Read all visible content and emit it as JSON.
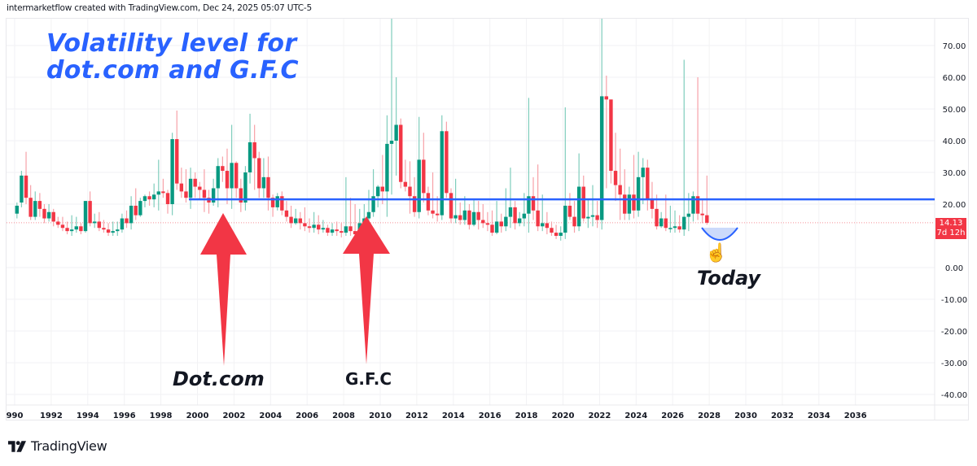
{
  "header": {
    "attribution": "intermarketflow created with TradingView.com, Dec 24, 2025 05:07 UTC-5"
  },
  "annotations": {
    "title_line1": "Volatility level for",
    "title_line2": "dot.com and G.F.C",
    "dotcom_label": "Dot.com",
    "gfc_label": "G.F.C",
    "today_label": "Today",
    "today_icon": "pointing-up-hand-icon"
  },
  "price_badge": {
    "price": "14.13",
    "countdown": "7d 12h"
  },
  "footer": {
    "brand": "TradingView"
  },
  "colors": {
    "up": "#089981",
    "down": "#f23645",
    "up_wick": "#7fcdbc",
    "down_wick": "#f7a1a8",
    "level_line": "#2962ff",
    "title": "#2962ff",
    "arrow": "#f23645",
    "grid": "#f2f2f4"
  },
  "chart_data": {
    "type": "candlestick",
    "title": "Volatility level for dot.com and G.F.C",
    "interval": "quarterly",
    "xlabel": "",
    "ylabel": "",
    "ylim": [
      -45,
      77
    ],
    "grid": true,
    "y_ticks": [
      "70.00",
      "60.00",
      "50.00",
      "40.00",
      "30.00",
      "20.00",
      "0.00",
      "-10.00",
      "-20.00",
      "-30.00",
      "-40.00"
    ],
    "x_ticks": [
      "990",
      "1992",
      "1994",
      "1996",
      "1998",
      "2000",
      "2002",
      "2004",
      "2006",
      "2008",
      "2010",
      "2012",
      "2014",
      "2016",
      "2018",
      "2020",
      "2022",
      "2024",
      "2026",
      "2028",
      "2030",
      "2032",
      "2034",
      "2036"
    ],
    "horizontal_level": 21.5,
    "last_price": 14.13,
    "annotations": [
      "Dot.com arrow at ~2000.7",
      "G.F.C arrow at ~2008.0",
      "Today marker at 2025.9"
    ],
    "start_year": 1990.0,
    "candles": [
      [
        17.0,
        19.5,
        15.5,
        20.5
      ],
      [
        20.5,
        29.0,
        19.0,
        30.5
      ],
      [
        29.0,
        22.0,
        20.0,
        36.5
      ],
      [
        22.0,
        16.0,
        15.0,
        26.0
      ],
      [
        16.0,
        21.0,
        15.0,
        24.0
      ],
      [
        21.0,
        18.5,
        16.0,
        23.5
      ],
      [
        18.5,
        15.5,
        14.0,
        20.0
      ],
      [
        15.5,
        17.5,
        14.5,
        20.0
      ],
      [
        17.5,
        14.5,
        13.0,
        18.5
      ],
      [
        14.5,
        13.5,
        12.5,
        16.0
      ],
      [
        13.5,
        12.5,
        11.5,
        16.0
      ],
      [
        12.5,
        11.5,
        10.5,
        14.5
      ],
      [
        11.5,
        12.0,
        10.0,
        16.5
      ],
      [
        12.0,
        13.0,
        11.0,
        16.0
      ],
      [
        13.0,
        11.5,
        10.5,
        14.0
      ],
      [
        11.5,
        21.0,
        11.0,
        21.0
      ],
      [
        21.0,
        14.0,
        13.0,
        24.0
      ],
      [
        14.0,
        14.5,
        12.5,
        17.0
      ],
      [
        14.5,
        12.5,
        11.5,
        17.5
      ],
      [
        12.5,
        12.0,
        11.0,
        15.0
      ],
      [
        12.0,
        11.0,
        10.0,
        14.0
      ],
      [
        11.0,
        11.5,
        10.0,
        14.5
      ],
      [
        11.5,
        12.0,
        10.0,
        14.5
      ],
      [
        12.0,
        15.5,
        11.0,
        17.0
      ],
      [
        15.5,
        14.0,
        12.5,
        18.0
      ],
      [
        14.0,
        19.5,
        12.0,
        22.5
      ],
      [
        19.5,
        16.5,
        15.0,
        25.0
      ],
      [
        16.5,
        21.0,
        16.0,
        22.0
      ],
      [
        21.0,
        22.5,
        19.0,
        23.0
      ],
      [
        22.5,
        21.5,
        19.5,
        24.0
      ],
      [
        21.5,
        23.0,
        19.0,
        26.5
      ],
      [
        23.0,
        24.0,
        18.0,
        34.0
      ],
      [
        24.0,
        23.5,
        22.0,
        28.0
      ],
      [
        23.5,
        20.0,
        17.0,
        24.5
      ],
      [
        20.0,
        40.5,
        16.5,
        42.5
      ],
      [
        40.5,
        26.5,
        24.5,
        49.5
      ],
      [
        26.5,
        24.0,
        22.0,
        31.5
      ],
      [
        24.0,
        22.0,
        20.5,
        31.0
      ],
      [
        22.0,
        28.0,
        18.5,
        31.5
      ],
      [
        28.0,
        25.5,
        22.0,
        30.0
      ],
      [
        25.5,
        24.5,
        21.5,
        27.0
      ],
      [
        24.5,
        22.0,
        17.5,
        31.0
      ],
      [
        22.0,
        20.5,
        17.0,
        24.5
      ],
      [
        20.5,
        25.0,
        19.5,
        28.0
      ],
      [
        25.0,
        32.0,
        19.0,
        34.5
      ],
      [
        32.0,
        30.5,
        27.0,
        35.0
      ],
      [
        30.5,
        25.0,
        20.0,
        37.5
      ],
      [
        25.0,
        33.0,
        18.5,
        45.0
      ],
      [
        33.0,
        25.0,
        22.0,
        33.5
      ],
      [
        25.0,
        20.5,
        17.5,
        28.0
      ],
      [
        20.5,
        30.0,
        18.0,
        32.0
      ],
      [
        30.0,
        39.5,
        26.5,
        48.5
      ],
      [
        39.5,
        34.5,
        24.5,
        45.0
      ],
      [
        34.5,
        25.0,
        22.0,
        36.5
      ],
      [
        25.0,
        28.5,
        22.0,
        34.5
      ],
      [
        28.5,
        22.0,
        18.0,
        35.0
      ],
      [
        22.0,
        19.0,
        16.0,
        23.0
      ],
      [
        19.0,
        22.5,
        18.0,
        23.5
      ],
      [
        22.5,
        18.0,
        16.5,
        24.0
      ],
      [
        18.0,
        16.0,
        14.5,
        21.0
      ],
      [
        16.0,
        14.0,
        12.5,
        19.5
      ],
      [
        14.0,
        15.5,
        13.5,
        18.5
      ],
      [
        15.5,
        14.0,
        12.0,
        17.5
      ],
      [
        14.0,
        13.0,
        11.5,
        19.0
      ],
      [
        13.0,
        12.5,
        11.0,
        15.5
      ],
      [
        12.5,
        13.5,
        11.0,
        17.5
      ],
      [
        13.5,
        12.0,
        10.5,
        16.5
      ],
      [
        12.0,
        12.5,
        11.0,
        15.0
      ],
      [
        12.5,
        11.0,
        10.0,
        13.5
      ],
      [
        11.0,
        12.0,
        10.0,
        14.0
      ],
      [
        12.0,
        11.5,
        10.0,
        14.5
      ],
      [
        11.5,
        11.0,
        9.5,
        14.0
      ],
      [
        11.0,
        13.0,
        10.0,
        28.5
      ],
      [
        13.0,
        11.5,
        10.0,
        22.0
      ],
      [
        11.5,
        10.5,
        9.5,
        20.0
      ],
      [
        10.5,
        14.0,
        10.0,
        18.5
      ],
      [
        14.0,
        15.5,
        12.0,
        20.0
      ],
      [
        15.5,
        17.5,
        14.0,
        24.5
      ],
      [
        17.5,
        22.5,
        16.0,
        31.0
      ],
      [
        22.5,
        25.5,
        19.0,
        26.0
      ],
      [
        25.5,
        24.0,
        20.0,
        35.5
      ],
      [
        24.0,
        39.0,
        16.0,
        48.0
      ],
      [
        39.0,
        40.0,
        23.0,
        80.0
      ],
      [
        40.0,
        45.0,
        29.0,
        60.0
      ],
      [
        45.0,
        27.0,
        25.0,
        47.0
      ],
      [
        27.0,
        25.5,
        24.0,
        34.0
      ],
      [
        25.5,
        22.5,
        17.0,
        33.5
      ],
      [
        22.5,
        17.5,
        16.0,
        28.5
      ],
      [
        17.5,
        34.0,
        15.5,
        47.5
      ],
      [
        34.0,
        23.5,
        20.5,
        42.5
      ],
      [
        23.5,
        18.0,
        16.5,
        25.5
      ],
      [
        18.0,
        17.0,
        15.5,
        30.0
      ],
      [
        17.0,
        16.5,
        14.5,
        22.5
      ],
      [
        16.5,
        43.0,
        15.0,
        48.0
      ],
      [
        43.0,
        23.5,
        22.0,
        46.0
      ],
      [
        23.5,
        15.5,
        14.0,
        25.0
      ],
      [
        15.5,
        16.5,
        14.0,
        28.0
      ],
      [
        16.5,
        15.0,
        13.5,
        20.5
      ],
      [
        15.0,
        18.0,
        13.5,
        22.5
      ],
      [
        18.0,
        13.5,
        12.0,
        20.0
      ],
      [
        13.5,
        17.5,
        13.0,
        21.5
      ],
      [
        17.5,
        15.0,
        12.0,
        21.0
      ],
      [
        15.0,
        14.0,
        12.5,
        20.0
      ],
      [
        14.0,
        13.5,
        11.5,
        17.5
      ],
      [
        13.5,
        11.0,
        10.0,
        18.0
      ],
      [
        11.0,
        14.5,
        10.5,
        21.0
      ],
      [
        14.5,
        13.0,
        11.0,
        17.0
      ],
      [
        13.0,
        16.0,
        11.5,
        25.0
      ],
      [
        16.0,
        19.0,
        12.5,
        31.5
      ],
      [
        19.0,
        14.0,
        12.0,
        21.0
      ],
      [
        14.0,
        15.5,
        13.0,
        17.5
      ],
      [
        15.5,
        17.0,
        13.0,
        23.5
      ],
      [
        17.0,
        22.5,
        11.0,
        53.5
      ],
      [
        22.5,
        18.0,
        15.0,
        28.5
      ],
      [
        18.0,
        13.0,
        11.5,
        32.5
      ],
      [
        13.0,
        14.0,
        11.5,
        23.0
      ],
      [
        14.0,
        12.5,
        10.5,
        17.5
      ],
      [
        12.5,
        11.0,
        10.0,
        14.5
      ],
      [
        11.0,
        10.0,
        9.0,
        13.5
      ],
      [
        10.0,
        11.0,
        8.5,
        13.0
      ],
      [
        11.0,
        19.5,
        9.0,
        50.5
      ],
      [
        19.5,
        16.0,
        15.0,
        23.5
      ],
      [
        16.0,
        13.0,
        11.0,
        21.0
      ],
      [
        13.0,
        25.5,
        11.5,
        36.0
      ],
      [
        25.5,
        15.5,
        14.5,
        29.0
      ],
      [
        15.5,
        16.0,
        12.5,
        21.5
      ],
      [
        16.0,
        16.5,
        13.0,
        26.0
      ],
      [
        16.5,
        15.0,
        12.5,
        21.0
      ],
      [
        15.0,
        54.0,
        12.0,
        85.5
      ],
      [
        54.0,
        53.0,
        25.0,
        60.5
      ],
      [
        53.0,
        30.5,
        26.5,
        45.5
      ],
      [
        30.5,
        26.0,
        21.0,
        42.5
      ],
      [
        26.0,
        23.0,
        15.0,
        37.5
      ],
      [
        23.0,
        17.0,
        15.0,
        31.0
      ],
      [
        17.0,
        23.0,
        15.0,
        25.5
      ],
      [
        23.0,
        18.0,
        15.5,
        35.5
      ],
      [
        18.0,
        28.5,
        16.0,
        36.5
      ],
      [
        28.5,
        31.5,
        20.0,
        34.5
      ],
      [
        31.5,
        21.5,
        18.0,
        34.0
      ],
      [
        21.5,
        18.5,
        15.5,
        27.0
      ],
      [
        18.5,
        13.0,
        12.0,
        23.0
      ],
      [
        13.0,
        15.5,
        12.5,
        17.5
      ],
      [
        15.5,
        12.5,
        11.5,
        23.0
      ],
      [
        12.5,
        12.5,
        11.0,
        19.5
      ],
      [
        12.5,
        13.0,
        11.0,
        18.0
      ],
      [
        13.0,
        12.0,
        11.0,
        16.5
      ],
      [
        12.0,
        16.0,
        10.0,
        65.5
      ],
      [
        16.0,
        17.0,
        11.5,
        23.5
      ],
      [
        17.0,
        22.5,
        14.5,
        24.0
      ],
      [
        22.5,
        17.0,
        15.0,
        60.0
      ],
      [
        17.0,
        16.5,
        14.0,
        21.5
      ],
      [
        16.5,
        14.13,
        13.5,
        29.0
      ]
    ]
  }
}
